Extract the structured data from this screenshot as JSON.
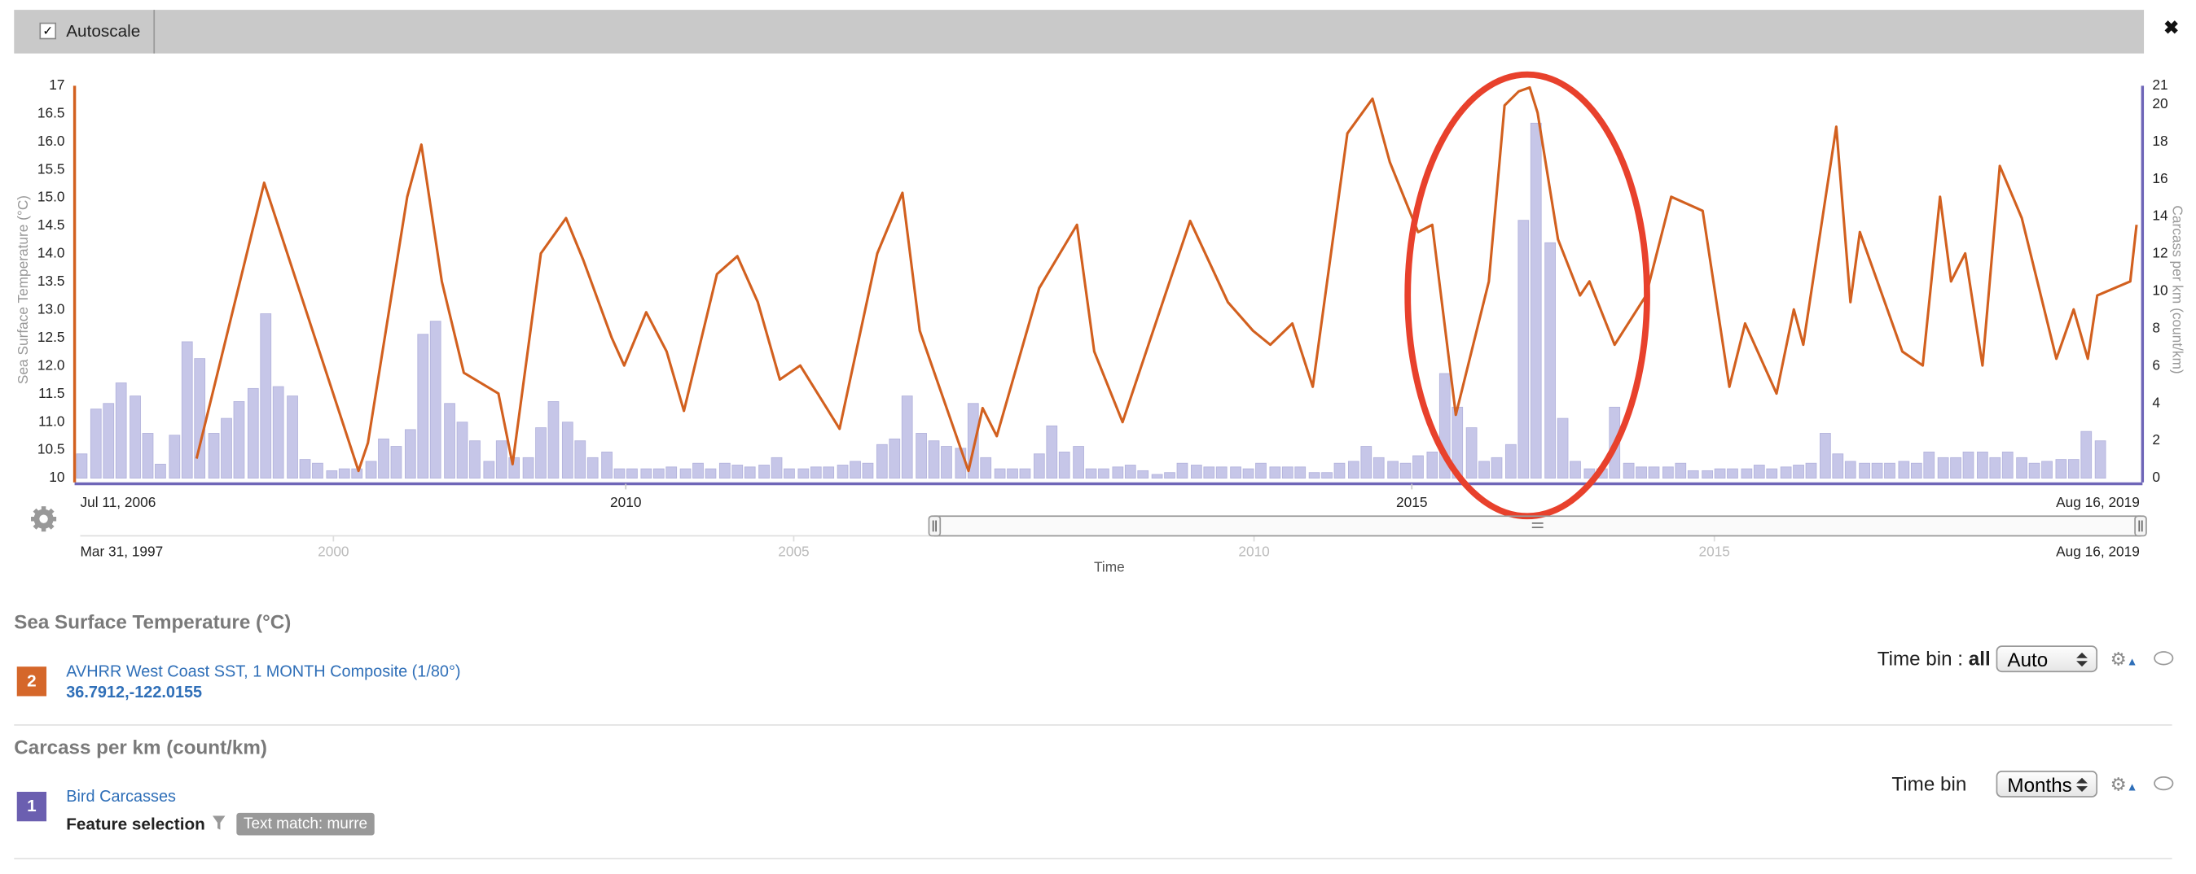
{
  "toolbar": {
    "autoscale": "Autoscale",
    "close": "✖"
  },
  "chart_data": {
    "type": "combo",
    "ylabel": "Sea Surface Temperature (°C)",
    "y2label": "Carcass per km (count/km)",
    "x_start_label": "Jul 11, 2006",
    "x_end_label": "Aug 16, 2019",
    "xlim": [
      2006.53,
      2019.63
    ],
    "xticks": [
      2010,
      2015
    ],
    "ylim": [
      10,
      17
    ],
    "yticks": [
      10,
      10.5,
      {
        "value": 11,
        "label": "11.0"
      },
      11.5,
      {
        "value": 12,
        "label": "12.0"
      },
      12.5,
      {
        "value": 13,
        "label": "13.0"
      },
      13.5,
      {
        "value": 14,
        "label": "14.0"
      },
      14.5,
      {
        "value": 15,
        "label": "15.0"
      },
      15.5,
      {
        "value": 16,
        "label": "16.0"
      },
      16.5,
      17
    ],
    "y2lim": [
      0,
      21
    ],
    "y2ticks": [
      0,
      2,
      4,
      6,
      8,
      10,
      12,
      14,
      16,
      18,
      20,
      21
    ],
    "grid": false,
    "series": [
      {
        "name": "AVHRR West Coast SST, 1 MONTH Composite (1/80°)",
        "type": "line",
        "color": "#d2601f",
        "x": [
          2007.27,
          2007.7,
          2008.3,
          2008.36,
          2008.61,
          2008.7,
          2008.83,
          2008.97,
          2009.19,
          2009.28,
          2009.46,
          2009.62,
          2009.73,
          2009.91,
          2009.99,
          2010.13,
          2010.26,
          2010.37,
          2010.58,
          2010.71,
          2010.84,
          2010.98,
          2011.11,
          2011.36,
          2011.6,
          2011.76,
          2011.87,
          2012.18,
          2012.27,
          2012.36,
          2012.63,
          2012.87,
          2012.98,
          2013.16,
          2013.43,
          2013.59,
          2013.83,
          2013.99,
          2014.1,
          2014.24,
          2014.37,
          2014.59,
          2014.75,
          2014.86,
          2015.04,
          2015.13,
          2015.28,
          2015.49,
          2015.59,
          2015.68,
          2015.75,
          2015.8,
          2015.93,
          2016.07,
          2016.13,
          2016.29,
          2016.49,
          2016.65,
          2016.85,
          2017.02,
          2017.12,
          2017.32,
          2017.43,
          2017.49,
          2017.7,
          2017.79,
          2017.85,
          2018.12,
          2018.25,
          2018.36,
          2018.43,
          2018.52,
          2018.63,
          2018.74,
          2018.88,
          2019.1,
          2019.21,
          2019.3,
          2019.36,
          2019.57,
          2019.61
        ],
        "values": [
          10.35,
          15.27,
          10.13,
          10.63,
          15.02,
          15.95,
          13.51,
          11.88,
          11.51,
          10.25,
          14.01,
          14.64,
          13.89,
          12.51,
          12.01,
          12.96,
          12.26,
          11.2,
          13.64,
          13.96,
          13.14,
          11.76,
          12.01,
          10.88,
          14.01,
          15.09,
          12.63,
          10.13,
          11.25,
          10.75,
          13.39,
          14.52,
          12.26,
          11.0,
          13.26,
          14.59,
          13.14,
          12.63,
          12.38,
          12.76,
          11.63,
          16.15,
          16.77,
          15.64,
          14.39,
          14.52,
          11.13,
          13.51,
          16.65,
          16.9,
          16.97,
          16.52,
          14.26,
          13.26,
          13.51,
          12.38,
          13.26,
          15.02,
          14.77,
          11.63,
          12.76,
          11.51,
          13.01,
          12.38,
          16.27,
          13.14,
          14.39,
          12.26,
          12.01,
          15.02,
          13.51,
          14.01,
          12.01,
          15.57,
          14.64,
          12.13,
          13.01,
          12.13,
          13.26,
          13.51,
          14.52
        ]
      },
      {
        "name": "Bird Carcasses",
        "type": "bar",
        "axis": "y2",
        "color": "#c6c6e8",
        "x": [
          2006.54,
          2006.63,
          2006.71,
          2006.79,
          2006.88,
          2006.96,
          2007.04,
          2007.13,
          2007.21,
          2007.29,
          2007.38,
          2007.46,
          2007.54,
          2007.63,
          2007.71,
          2007.79,
          2007.88,
          2007.96,
          2008.04,
          2008.13,
          2008.21,
          2008.29,
          2008.38,
          2008.46,
          2008.54,
          2008.63,
          2008.71,
          2008.79,
          2008.88,
          2008.96,
          2009.04,
          2009.13,
          2009.21,
          2009.29,
          2009.38,
          2009.46,
          2009.54,
          2009.63,
          2009.71,
          2009.79,
          2009.88,
          2009.96,
          2010.04,
          2010.13,
          2010.21,
          2010.29,
          2010.38,
          2010.46,
          2010.54,
          2010.63,
          2010.71,
          2010.79,
          2010.88,
          2010.96,
          2011.04,
          2011.13,
          2011.21,
          2011.29,
          2011.38,
          2011.46,
          2011.54,
          2011.63,
          2011.71,
          2011.79,
          2011.88,
          2011.96,
          2012.04,
          2012.13,
          2012.21,
          2012.29,
          2012.38,
          2012.46,
          2012.54,
          2012.63,
          2012.71,
          2012.79,
          2012.88,
          2012.96,
          2013.04,
          2013.13,
          2013.21,
          2013.29,
          2013.38,
          2013.46,
          2013.54,
          2013.63,
          2013.71,
          2013.79,
          2013.88,
          2013.96,
          2014.04,
          2014.13,
          2014.21,
          2014.29,
          2014.38,
          2014.46,
          2014.54,
          2014.63,
          2014.71,
          2014.79,
          2014.88,
          2014.96,
          2015.04,
          2015.13,
          2015.21,
          2015.29,
          2015.38,
          2015.46,
          2015.54,
          2015.63,
          2015.71,
          2015.79,
          2015.88,
          2015.96,
          2016.04,
          2016.13,
          2016.21,
          2016.29,
          2016.38,
          2016.46,
          2016.54,
          2016.63,
          2016.71,
          2016.79,
          2016.88,
          2016.96,
          2017.04,
          2017.13,
          2017.21,
          2017.29,
          2017.38,
          2017.46,
          2017.54,
          2017.63,
          2017.71,
          2017.79,
          2017.88,
          2017.96,
          2018.04,
          2018.13,
          2018.21,
          2018.29,
          2018.38,
          2018.46,
          2018.54,
          2018.63,
          2018.71,
          2018.79,
          2018.88,
          2018.96,
          2019.04,
          2019.13,
          2019.21,
          2019.29,
          2019.38
        ],
        "values": [
          1.3,
          3.7,
          4.0,
          5.1,
          4.4,
          2.4,
          0.75,
          2.3,
          7.3,
          6.4,
          2.4,
          3.2,
          4.1,
          4.8,
          8.8,
          4.9,
          4.4,
          1.0,
          0.8,
          0.4,
          0.5,
          0.5,
          0.9,
          2.1,
          1.7,
          2.6,
          7.7,
          8.4,
          4.0,
          3.0,
          2.0,
          0.9,
          2.0,
          1.1,
          1.1,
          2.7,
          4.1,
          3.0,
          2.0,
          1.1,
          1.4,
          0.5,
          0.5,
          0.5,
          0.5,
          0.6,
          0.5,
          0.8,
          0.5,
          0.8,
          0.7,
          0.6,
          0.7,
          1.1,
          0.5,
          0.5,
          0.6,
          0.6,
          0.7,
          0.9,
          0.8,
          1.8,
          2.1,
          4.4,
          2.4,
          2.0,
          1.7,
          1.6,
          4.0,
          1.1,
          0.5,
          0.5,
          0.5,
          1.3,
          2.8,
          1.4,
          1.7,
          0.5,
          0.5,
          0.6,
          0.7,
          0.4,
          0.2,
          0.3,
          0.8,
          0.7,
          0.6,
          0.6,
          0.6,
          0.5,
          0.8,
          0.6,
          0.6,
          0.6,
          0.3,
          0.3,
          0.8,
          0.9,
          1.7,
          1.1,
          0.9,
          0.8,
          1.2,
          1.4,
          5.6,
          3.8,
          2.7,
          0.9,
          1.1,
          1.8,
          13.8,
          19.0,
          12.6,
          3.2,
          0.9,
          0.5,
          0.5,
          3.8,
          0.8,
          0.6,
          0.6,
          0.6,
          0.8,
          0.4,
          0.4,
          0.5,
          0.5,
          0.5,
          0.7,
          0.5,
          0.6,
          0.7,
          0.8,
          2.4,
          1.3,
          0.9,
          0.8,
          0.8,
          0.8,
          0.9,
          0.8,
          1.4,
          1.1,
          1.1,
          1.4,
          1.4,
          1.1,
          1.4,
          1.1,
          0.8,
          0.9,
          1.0,
          1.0,
          2.5,
          2.0
        ]
      }
    ]
  },
  "navigator": {
    "start_label": "Mar 31, 1997",
    "end_label": "Aug 16, 2019",
    "xlim": [
      1997.25,
      2019.62
    ],
    "xticks": [
      2000,
      2005,
      2010,
      2015
    ],
    "xlabel": "Time"
  },
  "layers": [
    {
      "section": "Sea Surface Temperature (°C)",
      "number": "2",
      "location": "36.7912,-122.0155",
      "time_bin_label": "Time bin : ",
      "time_bin_bold": "all",
      "time_bin": "Auto"
    },
    {
      "section": "Carcass per km (count/km)",
      "number": "1",
      "feature_selection": "Feature selection",
      "filter": "Text match: murre",
      "time_bin_label": "Time bin",
      "time_bin": "Months"
    }
  ]
}
